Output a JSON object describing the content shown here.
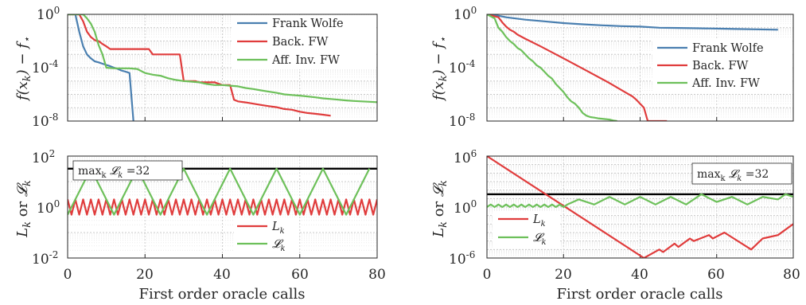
{
  "colors": {
    "frank_wolfe": "#4a7fb0",
    "back_fw": "#e03c3c",
    "aff_inv_fw": "#6dc05a",
    "reference": "#000000"
  },
  "chart_data": [
    {
      "type": "line",
      "panel": "top-left",
      "ylabel": "f(x_k) − f_⋆",
      "xlabel": "",
      "xlim": [
        0,
        80
      ],
      "ylim": [
        1e-08,
        1
      ],
      "yscale": "log",
      "grid": true,
      "legend_position": "top-right",
      "xtick_labels": [],
      "ytick_labels": [
        "10^0",
        "10^-4",
        "10^-8"
      ],
      "series": [
        {
          "name": "Frank Wolfe",
          "color": "#4a7fb0",
          "x": [
            0,
            2,
            3,
            4,
            5,
            6,
            7,
            8,
            9,
            10,
            11,
            12,
            13,
            14,
            15,
            16,
            17
          ],
          "y": [
            1,
            1,
            0.05,
            0.004,
            0.001,
            0.0005,
            0.0003,
            0.00025,
            0.0002,
            0.00016,
            0.00013,
            0.0001,
            8e-05,
            6e-05,
            5e-05,
            4e-05,
            1e-08
          ]
        },
        {
          "name": "Back. FW",
          "color": "#e03c3c",
          "x": [
            0,
            3,
            4,
            5,
            6,
            7,
            7.5,
            8,
            9,
            10,
            11,
            12,
            14,
            16,
            18,
            20,
            21,
            22,
            24,
            26,
            28,
            29,
            30,
            31,
            32,
            33,
            34,
            36,
            38,
            40,
            42,
            43,
            44,
            46,
            48,
            50,
            52,
            54,
            56,
            58,
            60,
            62,
            64,
            66,
            68
          ],
          "y": [
            1,
            1,
            0.3,
            0.05,
            0.02,
            0.012,
            0.01,
            0.01,
            0.006,
            0.004,
            0.0025,
            0.0025,
            0.0025,
            0.0025,
            0.0025,
            0.0025,
            0.0025,
            0.001,
            0.001,
            0.001,
            0.001,
            0.001,
            1e-05,
            1e-05,
            1e-05,
            1e-05,
            8e-06,
            8e-06,
            8e-06,
            5e-06,
            5e-06,
            4e-07,
            3e-07,
            2.5e-07,
            2e-07,
            1.6e-07,
            1.3e-07,
            1.1e-07,
            8e-08,
            7e-08,
            5e-08,
            4e-08,
            3.5e-08,
            3e-08,
            2.5e-08
          ]
        },
        {
          "name": "Aff. Inv. FW",
          "color": "#6dc05a",
          "x": [
            0,
            4,
            5,
            6,
            7,
            8,
            9,
            10,
            12,
            14,
            16,
            18,
            20,
            22,
            24,
            26,
            28,
            30,
            32,
            34,
            36,
            38,
            40,
            42,
            44,
            46,
            48,
            50,
            52,
            54,
            56,
            58,
            60,
            62,
            64,
            66,
            68,
            70,
            72,
            74,
            76,
            78,
            80
          ],
          "y": [
            1,
            1,
            0.5,
            0.2,
            0.05,
            0.005,
            0.001,
            0.0001,
            9e-05,
            9e-05,
            9e-05,
            8e-05,
            4e-05,
            3e-05,
            2.5e-05,
            1.6e-05,
            1.2e-05,
            1e-05,
            9e-06,
            8e-06,
            6e-06,
            5e-06,
            5e-06,
            4.5e-06,
            4e-06,
            3e-06,
            2.5e-06,
            2e-06,
            1.6e-06,
            1.3e-06,
            1e-06,
            9e-07,
            8e-07,
            7e-07,
            6e-07,
            5e-07,
            4.5e-07,
            4e-07,
            3.5e-07,
            3.2e-07,
            3e-07,
            2.8e-07,
            2.6e-07
          ]
        }
      ]
    },
    {
      "type": "line",
      "panel": "top-right",
      "ylabel": "f(x_k) − f_⋆",
      "xlabel": "",
      "xlim": [
        0,
        80
      ],
      "ylim": [
        1e-08,
        1
      ],
      "yscale": "log",
      "grid": true,
      "legend_position": "center-right",
      "xtick_labels": [],
      "ytick_labels": [
        "10^0",
        "10^-4",
        "10^-8"
      ],
      "series": [
        {
          "name": "Frank Wolfe",
          "color": "#4a7fb0",
          "x": [
            0,
            2,
            5,
            10,
            15,
            20,
            25,
            30,
            35,
            40,
            45,
            50,
            55,
            60,
            65,
            70,
            76
          ],
          "y": [
            1,
            0.9,
            0.6,
            0.4,
            0.3,
            0.22,
            0.18,
            0.15,
            0.13,
            0.12,
            0.1,
            0.095,
            0.09,
            0.085,
            0.08,
            0.075,
            0.07
          ]
        },
        {
          "name": "Back. FW",
          "color": "#e03c3c",
          "x": [
            0,
            3,
            4,
            5,
            6,
            7,
            8,
            10,
            14,
            20,
            26,
            32,
            36,
            38,
            39,
            40,
            41,
            42,
            43,
            47
          ],
          "y": [
            1,
            0.6,
            0.25,
            0.12,
            0.07,
            0.05,
            0.03,
            0.015,
            0.004,
            0.0005,
            6e-05,
            7e-06,
            1.5e-06,
            7e-07,
            4e-07,
            2e-07,
            1e-07,
            1e-08,
            1e-08,
            1e-08
          ]
        },
        {
          "name": "Aff. Inv. FW",
          "color": "#6dc05a",
          "x": [
            0,
            2,
            3,
            4,
            5,
            6,
            7,
            8,
            9,
            10,
            11,
            12,
            13,
            14,
            15,
            16,
            17,
            18,
            19,
            20,
            21,
            22,
            23,
            24,
            25,
            26,
            27,
            28,
            29,
            30,
            31,
            32,
            33,
            34
          ],
          "y": [
            1,
            0.5,
            0.1,
            0.05,
            0.02,
            0.01,
            0.006,
            0.003,
            0.002,
            0.001,
            0.0005,
            0.0003,
            0.00015,
            0.0001,
            5e-05,
            2.5e-05,
            1.5e-05,
            6e-06,
            3e-06,
            1.5e-06,
            6e-07,
            3e-07,
            2e-07,
            1e-07,
            4e-08,
            2.5e-08,
            2e-08,
            1.8e-08,
            1.6e-08,
            1.5e-08,
            1.4e-08,
            1.3e-08,
            1.1e-08,
            1e-08
          ]
        }
      ]
    },
    {
      "type": "line",
      "panel": "bottom-left",
      "ylabel": "L_k or 𝓛_k",
      "xlabel": "First order oracle calls",
      "xlim": [
        0,
        80
      ],
      "ylim": [
        0.01,
        100
      ],
      "yscale": "log",
      "grid": true,
      "legend_position": "bottom-right",
      "xtick_labels": [
        "0",
        "20",
        "40",
        "60",
        "80"
      ],
      "ytick_labels": [
        "10^2",
        "10^0",
        "10^-2"
      ],
      "annotation": "max_k 𝓛_k =32",
      "reference_line": 32,
      "series": [
        {
          "name": "L_k",
          "color": "#e03c3c",
          "pattern": "zigzag",
          "low": 0.5,
          "high": 2,
          "period": 2
        },
        {
          "name": "𝓛_k",
          "color": "#6dc05a",
          "pattern": "triangle",
          "low": 0.5,
          "high": 32,
          "period": 12
        }
      ]
    },
    {
      "type": "line",
      "panel": "bottom-right",
      "ylabel": "L_k or 𝓛_k",
      "xlabel": "First order oracle calls",
      "xlim": [
        0,
        80
      ],
      "ylim": [
        1e-06,
        1000000.0
      ],
      "yscale": "log",
      "grid": true,
      "legend_position": "bottom-left",
      "xtick_labels": [
        "0",
        "20",
        "40",
        "60",
        "80"
      ],
      "ytick_labels": [
        "10^6",
        "10^0",
        "10^-6"
      ],
      "annotation": "max_k 𝓛_k =32",
      "reference_line": 32,
      "series": [
        {
          "name": "L_k",
          "color": "#e03c3c",
          "x": [
            0,
            41,
            45,
            46,
            49,
            50,
            53,
            54,
            58,
            59,
            62,
            69,
            72,
            76,
            80
          ],
          "y": [
            1000000.0,
            1e-06,
            1e-05,
            5e-06,
            5e-05,
            2e-05,
            0.0002,
            0.0001,
            0.0005,
            0.0002,
            0.001,
            1e-05,
            0.0002,
            0.0005,
            0.01
          ]
        },
        {
          "name": "𝓛_k",
          "color": "#6dc05a",
          "x": [
            0,
            1,
            2,
            3,
            4,
            5,
            6,
            7,
            8,
            9,
            10,
            11,
            12,
            13,
            14,
            15,
            16,
            17,
            18,
            19,
            20,
            21,
            24,
            28,
            32,
            36,
            40,
            44,
            48,
            52,
            56,
            60,
            64,
            68,
            72,
            76,
            78,
            80
          ],
          "y": [
            1,
            2,
            1,
            2,
            1,
            2,
            1,
            2,
            1,
            2,
            1,
            2,
            1,
            2,
            1,
            2,
            1,
            2,
            1,
            2,
            1,
            2,
            8,
            2,
            16,
            2,
            16,
            2,
            16,
            2,
            32,
            4,
            16,
            2,
            16,
            8,
            32,
            16
          ]
        }
      ]
    }
  ]
}
